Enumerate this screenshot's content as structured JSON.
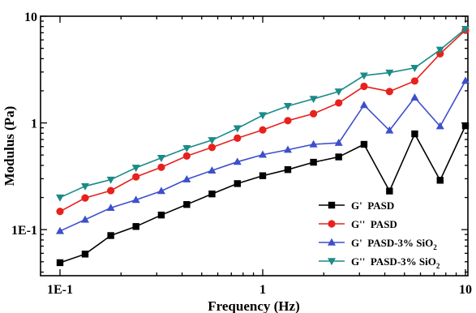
{
  "chart_data": {
    "type": "line",
    "xlabel": "Frequency (Hz)",
    "ylabel": "Modulus (Pa)",
    "xscale": "log",
    "yscale": "log",
    "xlim": [
      0.1,
      10
    ],
    "ylim": [
      0.037,
      10
    ],
    "grid": false,
    "legend_position": "bottom-right",
    "x_tick_labels": [
      {
        "value": 0.1,
        "label": "1E-1"
      },
      {
        "value": 1,
        "label": "1"
      },
      {
        "value": 10,
        "label": "10"
      }
    ],
    "y_tick_labels": [
      {
        "value": 0.1,
        "label": "1E-1"
      },
      {
        "value": 1,
        "label": "1"
      },
      {
        "value": 10,
        "label": "10"
      }
    ],
    "x": [
      0.1,
      0.133,
      0.178,
      0.237,
      0.316,
      0.422,
      0.562,
      0.75,
      1.0,
      1.33,
      1.78,
      2.37,
      3.16,
      4.22,
      5.62,
      7.5,
      10.0
    ],
    "series": [
      {
        "name": "G'  PASD",
        "color": "#000000",
        "marker": "square",
        "values": [
          0.049,
          0.059,
          0.088,
          0.107,
          0.137,
          0.172,
          0.216,
          0.27,
          0.32,
          0.365,
          0.428,
          0.48,
          0.63,
          0.23,
          0.79,
          0.29,
          0.94
        ]
      },
      {
        "name": "G''  PASD",
        "color": "#e8211d",
        "marker": "circle",
        "values": [
          0.148,
          0.198,
          0.232,
          0.312,
          0.384,
          0.49,
          0.59,
          0.72,
          0.86,
          1.05,
          1.22,
          1.54,
          2.2,
          1.97,
          2.47,
          4.45,
          7.4
        ]
      },
      {
        "name": "G'  PASD-3% SiO",
        "name_sub": "2",
        "color": "#3e4fcb",
        "marker": "triangle-up",
        "values": [
          0.097,
          0.124,
          0.16,
          0.19,
          0.23,
          0.296,
          0.358,
          0.432,
          0.504,
          0.56,
          0.63,
          0.65,
          1.47,
          0.85,
          1.73,
          0.93,
          2.48
        ]
      },
      {
        "name": "G''  PASD-3% SiO",
        "name_sub": "2",
        "color": "#1a8b87",
        "marker": "triangle-down",
        "values": [
          0.2,
          0.255,
          0.294,
          0.38,
          0.47,
          0.58,
          0.69,
          0.89,
          1.18,
          1.44,
          1.68,
          1.97,
          2.78,
          2.96,
          3.28,
          4.85,
          7.6
        ]
      }
    ]
  }
}
